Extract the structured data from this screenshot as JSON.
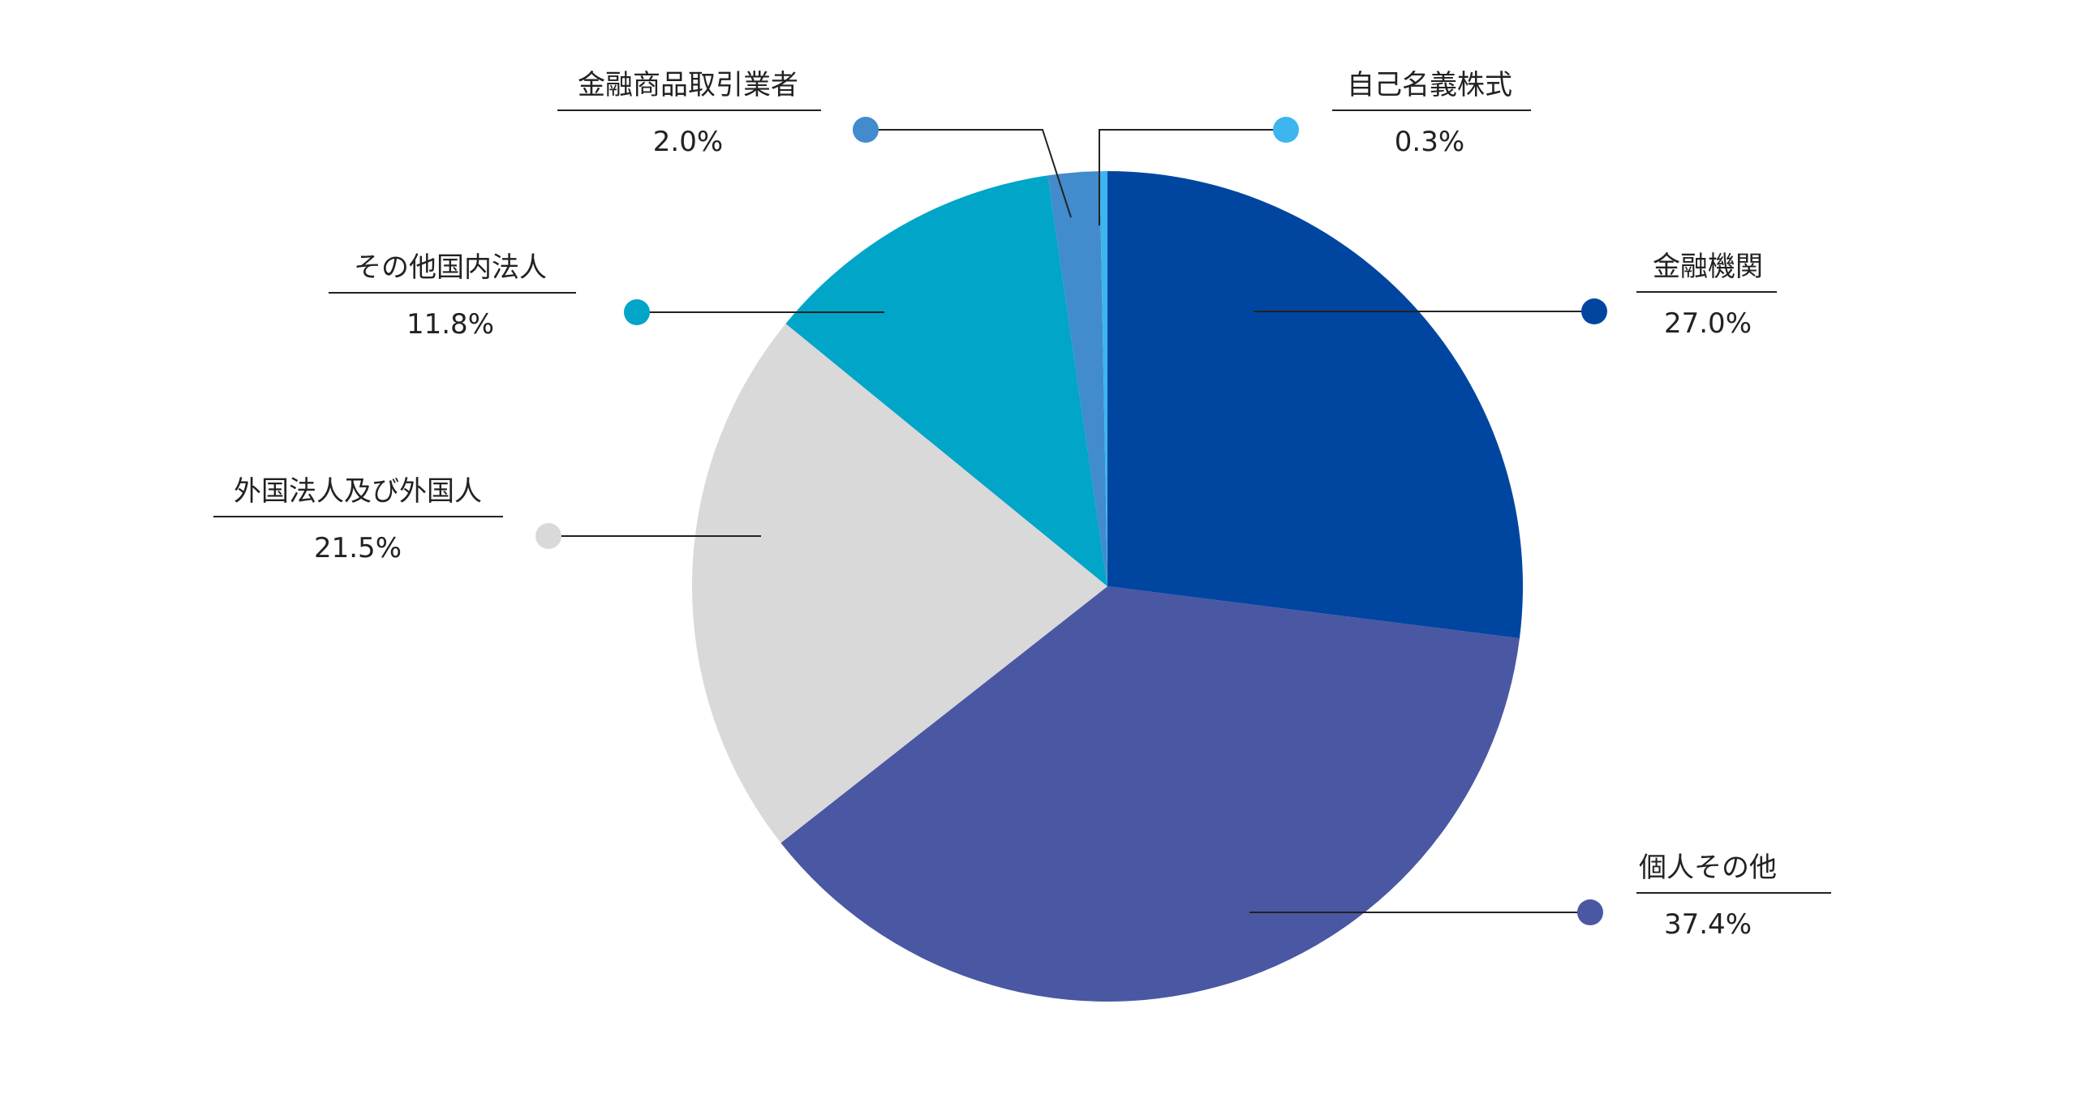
{
  "chart_data": {
    "type": "pie",
    "start": "top",
    "direction": "clockwise",
    "slices": [
      {
        "label": "金融機関",
        "value": 27.0,
        "value_label": "27.0%",
        "color": "#0046a1"
      },
      {
        "label": "個人その他",
        "value": 37.4,
        "value_label": "37.4%",
        "color": "#4a57a3"
      },
      {
        "label": "外国法人及び外国人",
        "value": 21.5,
        "value_label": "21.5%",
        "color": "#d9d9d9"
      },
      {
        "label": "その他国内法人",
        "value": 11.8,
        "value_label": "11.8%",
        "color": "#00a5c8"
      },
      {
        "label": "金融商品取引業者",
        "value": 2.0,
        "value_label": "2.0%",
        "color": "#428bcc"
      },
      {
        "label": "自己名義株式",
        "value": 0.3,
        "value_label": "0.3%",
        "color": "#3db5ef"
      }
    ]
  }
}
